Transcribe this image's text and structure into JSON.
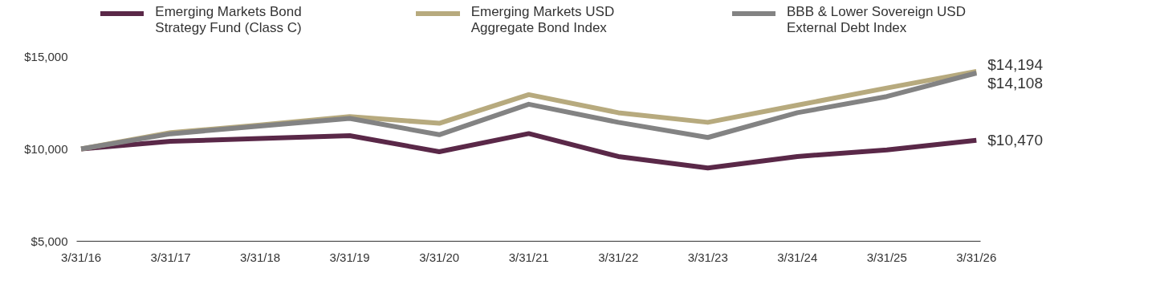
{
  "chart_data": {
    "type": "line",
    "categories": [
      "3/31/16",
      "3/31/17",
      "3/31/18",
      "3/31/19",
      "3/31/20",
      "3/31/21",
      "3/31/22",
      "3/31/23",
      "3/31/24",
      "3/31/25",
      "3/31/26"
    ],
    "series": [
      {
        "name": "Emerging Markets Bond Strategy Fund (Class C)",
        "color": "#5a2848",
        "values": [
          10000,
          10410,
          10570,
          10720,
          9850,
          10830,
          9590,
          8970,
          9590,
          9950,
          10470
        ],
        "value_labels": [
          null,
          null,
          null,
          null,
          null,
          null,
          null,
          null,
          null,
          null,
          "$10,470"
        ]
      },
      {
        "name": "Emerging Markets USD Aggregate Bond Index",
        "color": "#b7aa7e",
        "values": [
          10000,
          10880,
          11290,
          11750,
          11390,
          12940,
          11960,
          11440,
          12370,
          13300,
          14194
        ],
        "value_labels": [
          null,
          null,
          null,
          null,
          null,
          null,
          null,
          null,
          null,
          null,
          "$14,194"
        ]
      },
      {
        "name": "BBB & Lower Sovereign USD External Debt Index",
        "color": "#838383",
        "values": [
          10000,
          10820,
          11240,
          11650,
          10770,
          12420,
          11440,
          10620,
          11960,
          12840,
          14108
        ],
        "value_labels": [
          null,
          null,
          null,
          null,
          null,
          null,
          null,
          null,
          null,
          null,
          "$14,108"
        ]
      }
    ],
    "ylim": [
      5000,
      15000
    ],
    "yticks": [
      {
        "value": 5000,
        "label": "$5,000"
      },
      {
        "value": 10000,
        "label": "$10,000"
      },
      {
        "value": 15000,
        "label": "$15,000"
      }
    ],
    "grid": false,
    "legend": "top",
    "marker": "none",
    "line_style": "solid"
  }
}
